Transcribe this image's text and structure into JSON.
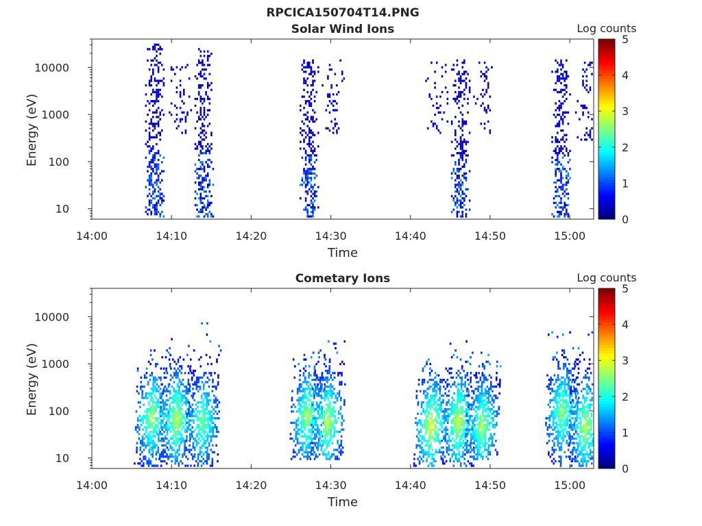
{
  "figure": {
    "title": "RPCICA150704T14.PNG"
  },
  "chart_data": [
    {
      "type": "heatmap",
      "title": "Solar Wind Ions",
      "xlabel": "Time",
      "ylabel": "Energy (eV)",
      "x_range": [
        "14:00",
        "15:03"
      ],
      "x_ticks": [
        "14:00",
        "14:10",
        "14:20",
        "14:30",
        "14:40",
        "14:50",
        "15:00"
      ],
      "y_scale": "log",
      "y_range": [
        6,
        40000
      ],
      "y_ticks": [
        "10",
        "100",
        "1000",
        "10000"
      ],
      "colorbar": {
        "label": "Log counts",
        "range": [
          0,
          5
        ],
        "ticks": [
          "0",
          "1",
          "2",
          "3",
          "4",
          "5"
        ],
        "colormap": "jet"
      },
      "bursts": [
        {
          "time": "14:07.8",
          "e_min": 6,
          "e_max": 30000,
          "peak_log_counts": 1.3,
          "character": "sparse"
        },
        {
          "time": "14:11.0",
          "e_min": 300,
          "e_max": 12000,
          "peak_log_counts": 0.6,
          "character": "very sparse"
        },
        {
          "time": "14:14.0",
          "e_min": 6,
          "e_max": 25000,
          "peak_log_counts": 1.4,
          "character": "sparse"
        },
        {
          "time": "14:27.2",
          "e_min": 6,
          "e_max": 15000,
          "peak_log_counts": 1.4,
          "character": "sparse"
        },
        {
          "time": "14:30.2",
          "e_min": 400,
          "e_max": 15000,
          "peak_log_counts": 0.6,
          "character": "very sparse"
        },
        {
          "time": "14:43.2",
          "e_min": 400,
          "e_max": 15000,
          "peak_log_counts": 0.6,
          "character": "very sparse"
        },
        {
          "time": "14:46.2",
          "e_min": 6,
          "e_max": 15000,
          "peak_log_counts": 1.4,
          "character": "sparse"
        },
        {
          "time": "14:49.2",
          "e_min": 400,
          "e_max": 15000,
          "peak_log_counts": 0.6,
          "character": "very sparse"
        },
        {
          "time": "14:58.8",
          "e_min": 6,
          "e_max": 15000,
          "peak_log_counts": 1.5,
          "character": "sparse"
        },
        {
          "time": "15:02.0",
          "e_min": 300,
          "e_max": 15000,
          "peak_log_counts": 0.6,
          "character": "very sparse"
        }
      ]
    },
    {
      "type": "heatmap",
      "title": "Cometary Ions",
      "xlabel": "Time",
      "ylabel": "Energy (eV)",
      "x_range": [
        "14:00",
        "15:03"
      ],
      "x_ticks": [
        "14:00",
        "14:10",
        "14:20",
        "14:30",
        "14:40",
        "14:50",
        "15:00"
      ],
      "y_scale": "log",
      "y_range": [
        6,
        40000
      ],
      "y_ticks": [
        "10",
        "100",
        "1000",
        "10000"
      ],
      "colorbar": {
        "label": "Log counts",
        "range": [
          0,
          5
        ],
        "ticks": [
          "0",
          "1",
          "2",
          "3",
          "4",
          "5"
        ],
        "colormap": "jet"
      },
      "bursts": [
        {
          "time": "14:07.5",
          "e_min": 6,
          "e_max": 2000,
          "peak_log_counts": 2.6,
          "peak_energy": 80
        },
        {
          "time": "14:10.6",
          "e_min": 6,
          "e_max": 6000,
          "peak_log_counts": 2.7,
          "peak_energy": 70
        },
        {
          "time": "14:13.9",
          "e_min": 6,
          "e_max": 8000,
          "peak_log_counts": 2.4,
          "peak_energy": 60
        },
        {
          "time": "14:27.0",
          "e_min": 10,
          "e_max": 2000,
          "peak_log_counts": 2.6,
          "peak_energy": 80
        },
        {
          "time": "14:29.6",
          "e_min": 10,
          "e_max": 4000,
          "peak_log_counts": 2.7,
          "peak_energy": 60
        },
        {
          "time": "14:42.6",
          "e_min": 6,
          "e_max": 1500,
          "peak_log_counts": 2.9,
          "peak_energy": 50
        },
        {
          "time": "14:46.0",
          "e_min": 6,
          "e_max": 3000,
          "peak_log_counts": 2.8,
          "peak_energy": 60
        },
        {
          "time": "14:49.0",
          "e_min": 10,
          "e_max": 2000,
          "peak_log_counts": 2.6,
          "peak_energy": 50
        },
        {
          "time": "14:59.0",
          "e_min": 6,
          "e_max": 5000,
          "peak_log_counts": 2.5,
          "peak_energy": 100
        },
        {
          "time": "15:02.0",
          "e_min": 6,
          "e_max": 5000,
          "peak_log_counts": 2.7,
          "peak_energy": 50
        }
      ]
    }
  ]
}
